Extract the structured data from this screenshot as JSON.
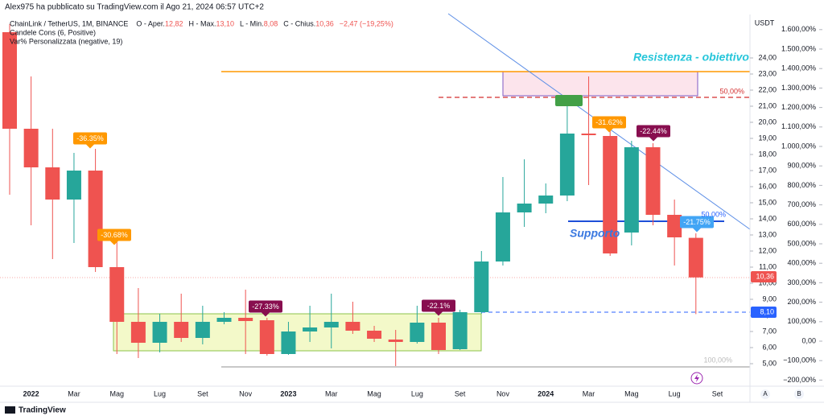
{
  "header": {
    "author_line": "Alex975 ha pubblicato su TradingView.com il Ago 21, 2024 06:57 UTC+2",
    "symbol": "ChainLink / TetherUS, 1M, BINANCE",
    "ohlc_legend": [
      {
        "label": "O - Aper.",
        "value": "12,82"
      },
      {
        "label": "H - Max.",
        "value": "13,10"
      },
      {
        "label": "L - Min.",
        "value": "8,08"
      },
      {
        "label": "C - Chius.",
        "value": "10,36"
      }
    ],
    "change": "−2,47 (−19,25%)",
    "indicators": [
      "Candele Cons (6, Positive)",
      "Var% Personalizzata (negative, 19)"
    ]
  },
  "chart_data": {
    "type": "candlestick",
    "y_unit": "USDT",
    "categories": [
      null,
      "2022",
      null,
      "Mar",
      null,
      "Mag",
      null,
      "Lug",
      null,
      "Set",
      null,
      "Nov",
      null,
      "2023",
      null,
      "Mar",
      null,
      "Mag",
      null,
      "Lug",
      null,
      "Set",
      null,
      "Nov",
      null,
      "2024",
      null,
      "Mar",
      null,
      "Mag",
      null,
      "Lug",
      null,
      "Set"
    ],
    "open": [
      25.6,
      19.6,
      17.2,
      15.2,
      17.0,
      11.0,
      7.6,
      6.3,
      7.6,
      6.6,
      7.6,
      7.85,
      7.7,
      5.6,
      7.0,
      7.25,
      7.6,
      7.05,
      6.5,
      6.35,
      7.55,
      5.9,
      8.2,
      11.35,
      14.4,
      14.95,
      15.45,
      19.3,
      19.15,
      13.15,
      18.45,
      14.25,
      12.82,
      null
    ],
    "high": [
      26.1,
      22.85,
      19.6,
      18.1,
      18.35,
      12.6,
      9.7,
      8.1,
      9.35,
      8.6,
      8.2,
      9.6,
      7.85,
      7.6,
      8.6,
      9.35,
      8.85,
      7.35,
      7.1,
      8.6,
      7.85,
      8.35,
      12.0,
      16.6,
      17.7,
      16.2,
      21.2,
      22.85,
      19.85,
      18.85,
      18.7,
      15.2,
      13.1,
      null
    ],
    "low": [
      15.5,
      13.6,
      11.5,
      12.5,
      10.7,
      5.6,
      5.35,
      5.7,
      6.35,
      6.2,
      7.45,
      5.6,
      5.5,
      5.55,
      6.35,
      5.95,
      6.85,
      6.35,
      4.85,
      6.25,
      5.6,
      5.85,
      8.1,
      11.1,
      13.5,
      14.35,
      15.1,
      16.1,
      11.7,
      12.35,
      13.6,
      11.1,
      8.08,
      null
    ],
    "close": [
      19.6,
      17.2,
      15.2,
      17.0,
      11.0,
      7.6,
      6.3,
      7.6,
      6.6,
      7.6,
      7.85,
      7.65,
      5.6,
      7.0,
      7.25,
      7.6,
      7.05,
      6.55,
      6.35,
      7.55,
      5.85,
      8.2,
      11.35,
      14.4,
      14.95,
      15.45,
      19.3,
      19.2,
      11.85,
      18.45,
      14.25,
      12.85,
      10.36,
      null
    ],
    "up_color": "#26a69a",
    "down_color": "#ef5350",
    "ylim": [
      3.6,
      27.6
    ],
    "yticks": [
      {
        "value": 5,
        "label": "5,00"
      },
      {
        "value": 6,
        "label": "6,00"
      },
      {
        "value": 7,
        "label": "7,00"
      },
      {
        "value": 8,
        "label": "8,00"
      },
      {
        "value": 9,
        "label": "9,00"
      },
      {
        "value": 10,
        "label": "10,00"
      },
      {
        "value": 11,
        "label": "11,00"
      },
      {
        "value": 12,
        "label": "12,00"
      },
      {
        "value": 13,
        "label": "13,00"
      },
      {
        "value": 14,
        "label": "14,00"
      },
      {
        "value": 15,
        "label": "15,00"
      },
      {
        "value": 16,
        "label": "16,00"
      },
      {
        "value": 17,
        "label": "17,00"
      },
      {
        "value": 18,
        "label": "18,00"
      },
      {
        "value": 19,
        "label": "19,00"
      },
      {
        "value": 20,
        "label": "20,00"
      },
      {
        "value": 21,
        "label": "21,00"
      },
      {
        "value": 22,
        "label": "22,00"
      },
      {
        "value": 23,
        "label": "23,00"
      },
      {
        "value": 24,
        "label": "24,00"
      }
    ],
    "y2lim": [
      -231.4,
      1752.1
    ],
    "y2ticks": [
      {
        "value": 1600,
        "label": "1.600,00%"
      },
      {
        "value": 1500,
        "label": "1.500,00%"
      },
      {
        "value": 1400,
        "label": "1.400,00%"
      },
      {
        "value": 1300,
        "label": "1.300,00%"
      },
      {
        "value": 1200,
        "label": "1.200,00%"
      },
      {
        "value": 1100,
        "label": "1.100,00%"
      },
      {
        "value": 1000,
        "label": "1.000,00%"
      },
      {
        "value": 900,
        "label": "900,00%"
      },
      {
        "value": 800,
        "label": "800,00%"
      },
      {
        "value": 700,
        "label": "700,00%"
      },
      {
        "value": 600,
        "label": "600,00%"
      },
      {
        "value": 500,
        "label": "500,00%"
      },
      {
        "value": 400,
        "label": "400,00%"
      },
      {
        "value": 300,
        "label": "300,00%"
      },
      {
        "value": 200,
        "label": "200,00%"
      },
      {
        "value": 100,
        "label": "100,00%"
      },
      {
        "value": 0,
        "label": "0,00"
      },
      {
        "value": -100,
        "label": "−100,00%"
      },
      {
        "value": -200,
        "label": "−200,00%"
      }
    ],
    "annotations": [
      {
        "text": "-36.35%",
        "color": "#ff9800"
      },
      {
        "text": "-30.68%",
        "color": "#ff9800"
      },
      {
        "text": "-27.33%",
        "color": "#880e4f"
      },
      {
        "text": "-22.1%",
        "color": "#880e4f"
      },
      {
        "text": "-31.62%",
        "color": "#ff9800"
      },
      {
        "text": "-22.44%",
        "color": "#880e4f"
      },
      {
        "text": "-21.75%",
        "color": "#42a5f5"
      }
    ],
    "drawing_labels": {
      "resistance": "Resistenza - obiettivo",
      "support": "Supporto",
      "fib_top": "50,00%",
      "fib_support": "50,00%",
      "fib_bottom": "100,00%"
    },
    "price_labels": [
      {
        "text": "10,36",
        "color": "#ef5350"
      },
      {
        "text": "8,10",
        "color": "#2962ff"
      }
    ]
  },
  "axis_buttons": [
    "A",
    "B"
  ],
  "footer": "TradingView"
}
